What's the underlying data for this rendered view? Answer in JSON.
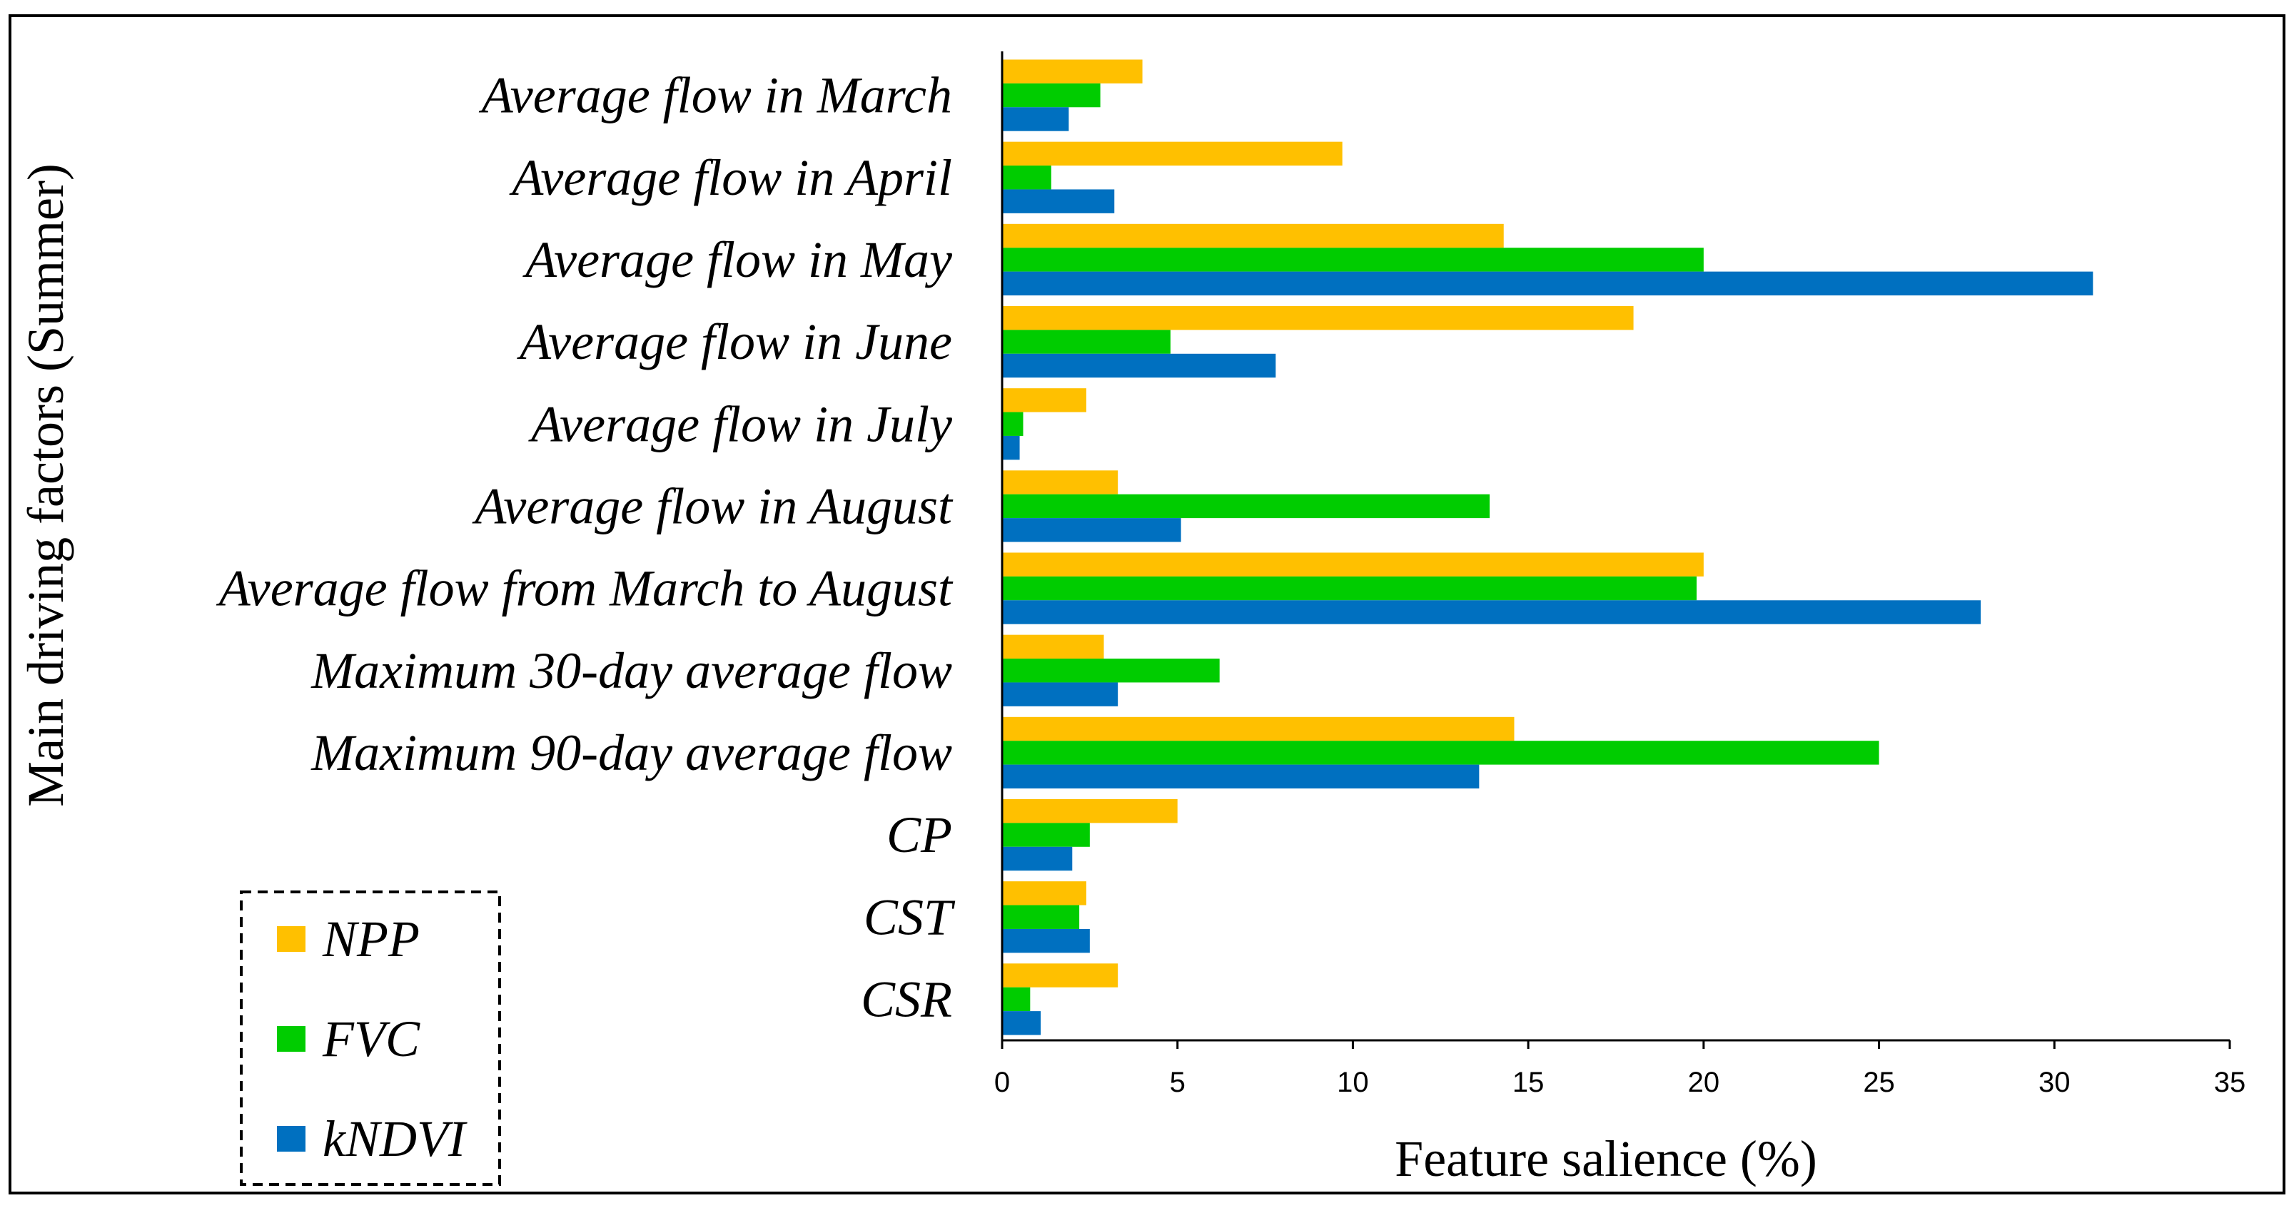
{
  "chart_data": {
    "type": "bar",
    "orientation": "horizontal",
    "categories": [
      "Average flow in March",
      "Average flow in April",
      "Average flow in May",
      "Average flow in June",
      "Average flow in July",
      "Average flow in August",
      "Average flow from March to August",
      "Maximum 30-day average flow",
      "Maximum 90-day average flow",
      "CP",
      "CST",
      "CSR"
    ],
    "series": [
      {
        "name": "NPP",
        "color": "#FFC000",
        "values": [
          4.0,
          9.7,
          14.3,
          18.0,
          2.4,
          3.3,
          20.0,
          2.9,
          14.6,
          5.0,
          2.4,
          3.3
        ]
      },
      {
        "name": "FVC",
        "color": "#00CC00",
        "values": [
          2.8,
          1.4,
          20.0,
          4.8,
          0.6,
          13.9,
          19.8,
          6.2,
          25.0,
          2.5,
          2.2,
          0.8
        ]
      },
      {
        "name": "kNDVI",
        "color": "#0070C0",
        "values": [
          1.9,
          3.2,
          31.1,
          7.8,
          0.5,
          5.1,
          27.9,
          3.3,
          13.6,
          2.0,
          2.5,
          1.1
        ]
      }
    ],
    "xlabel": "Feature salience (%)",
    "ylabel": "Main driving factors (Summer)",
    "xlim": [
      0,
      35
    ],
    "xticks": [
      0,
      5,
      10,
      15,
      20,
      25,
      30,
      35
    ],
    "grid": false,
    "legend_position": "bottom-left"
  }
}
